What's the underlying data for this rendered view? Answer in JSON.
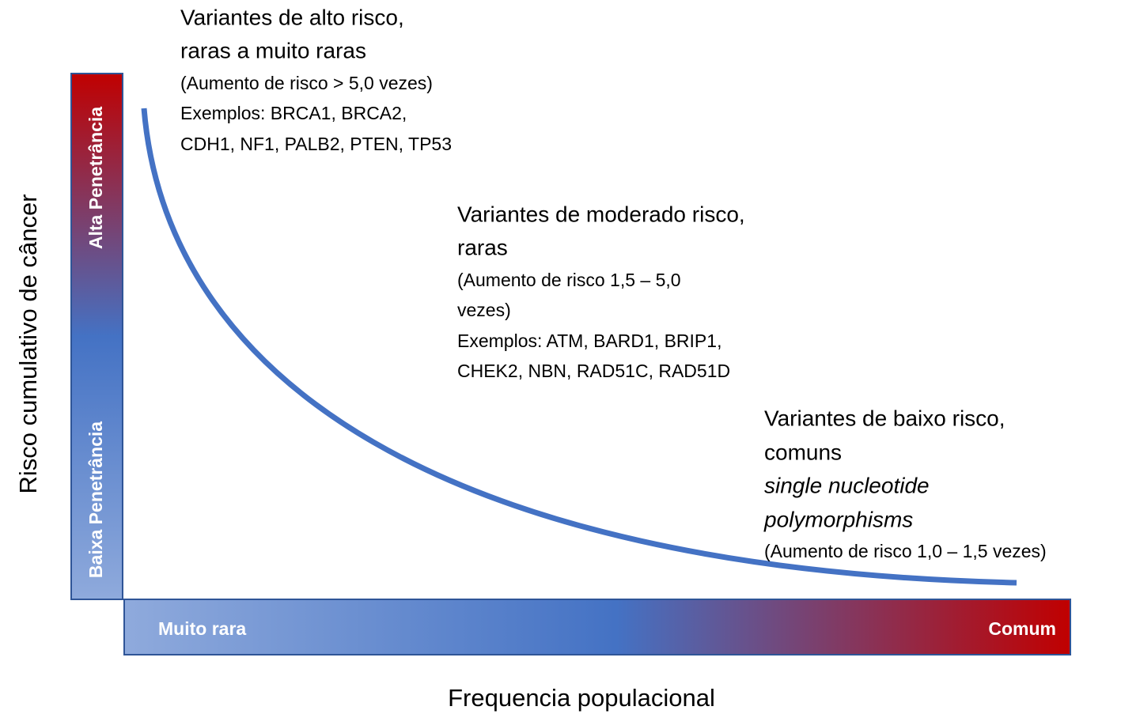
{
  "axes": {
    "y_label": "Risco cumulativo de câncer",
    "x_label": "Frequencia populacional",
    "y_bar": {
      "top": "Alta Penetrância",
      "bottom": "Baixa Penetrância"
    },
    "x_bar": {
      "left": "Muito rara",
      "right": "Comum"
    }
  },
  "groups": [
    {
      "lines": [
        "Variantes de alto risco,",
        "raras a muito raras",
        "(Aumento de risco > 5,0 vezes)",
        "Exemplos: BRCA1, BRCA2,",
        "CDH1, NF1, PALB2, PTEN, TP53"
      ]
    },
    {
      "lines": [
        "Variantes de moderado risco,",
        "raras",
        "(Aumento de risco 1,5 – 5,0",
        "vezes)",
        "Exemplos: ATM, BARD1, BRIP1,",
        "CHEK2, NBN, RAD51C, RAD51D"
      ]
    },
    {
      "lines": [
        "Variantes de baixo risco,",
        "comuns",
        "single nucleotide",
        "polymorphisms",
        "(Aumento de risco 1,0 – 1,5 vezes)"
      ]
    }
  ]
}
